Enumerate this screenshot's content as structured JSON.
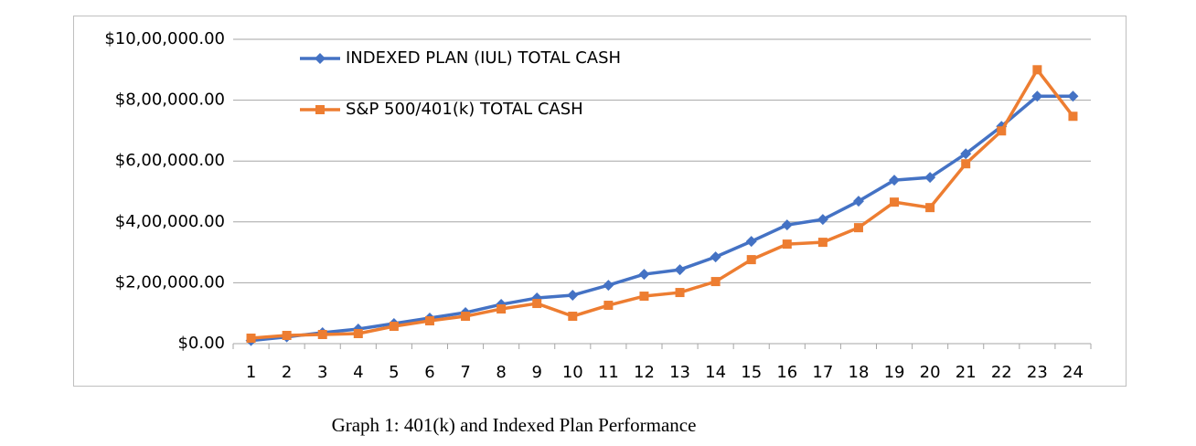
{
  "chart_data": {
    "type": "line",
    "caption": "Graph 1: 401(k) and Indexed Plan Performance",
    "categories": [
      "1",
      "2",
      "3",
      "4",
      "5",
      "6",
      "7",
      "8",
      "9",
      "10",
      "11",
      "12",
      "13",
      "14",
      "15",
      "16",
      "17",
      "18",
      "19",
      "20",
      "21",
      "22",
      "23",
      "24"
    ],
    "series": [
      {
        "name": "INDEXED PLAN (IUL) TOTAL CASH",
        "color": "#4472c4",
        "marker": "diamond",
        "values": [
          10000,
          22000,
          36000,
          48000,
          66000,
          84000,
          102000,
          129000,
          150000,
          159000,
          192000,
          228000,
          243000,
          285000,
          336000,
          390000,
          408000,
          468000,
          537000,
          546000,
          624000,
          714000,
          813000,
          813000
        ]
      },
      {
        "name": "S&P 500/401(k) TOTAL CASH",
        "color": "#ed7d31",
        "marker": "square",
        "values": [
          18000,
          27000,
          30000,
          33000,
          57000,
          75000,
          90000,
          114000,
          132000,
          90000,
          126000,
          156000,
          168000,
          204000,
          276000,
          327000,
          333000,
          381000,
          465000,
          447000,
          591000,
          699000,
          900000,
          747000
        ]
      }
    ],
    "ylim": [
      0,
      1000000
    ],
    "yticks": [
      {
        "value": 0,
        "label": "$0.00"
      },
      {
        "value": 200000,
        "label": "$2,00,000.00"
      },
      {
        "value": 400000,
        "label": "$4,00,000.00"
      },
      {
        "value": 600000,
        "label": "$6,00,000.00"
      },
      {
        "value": 800000,
        "label": "$8,00,000.00"
      },
      {
        "value": 1000000,
        "label": "$10,00,000.00"
      }
    ],
    "grid": true,
    "legend": "upper left"
  }
}
